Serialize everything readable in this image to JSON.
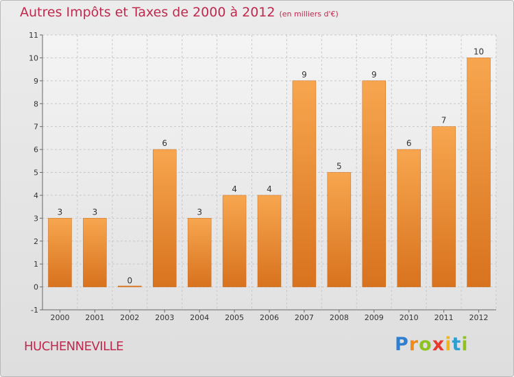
{
  "chart_data": {
    "type": "bar",
    "title": "Autres Impôts et Taxes de 2000 à 2012",
    "unit": "(en milliers d'€)",
    "categories": [
      "2000",
      "2001",
      "2002",
      "2003",
      "2004",
      "2005",
      "2006",
      "2007",
      "2008",
      "2009",
      "2010",
      "2011",
      "2012"
    ],
    "values": [
      3,
      3,
      0,
      6,
      3,
      4,
      4,
      9,
      5,
      9,
      6,
      7,
      10
    ],
    "ylim": [
      -1,
      11
    ],
    "yticks": [
      "-1",
      "0",
      "1",
      "2",
      "3",
      "4",
      "5",
      "6",
      "7",
      "8",
      "9",
      "10",
      "11"
    ],
    "grid": true,
    "bar_color": "#f2973f"
  },
  "commune": "HUCHENNEVILLE",
  "logo": {
    "letters": [
      "P",
      "r",
      "o",
      "x",
      "i",
      "t",
      "i"
    ],
    "colors": [
      "#2f7fd1",
      "#f08a1c",
      "#8ec21f",
      "#e63a2e",
      "#f2b61c",
      "#2f9fd1",
      "#8ec21f"
    ]
  }
}
